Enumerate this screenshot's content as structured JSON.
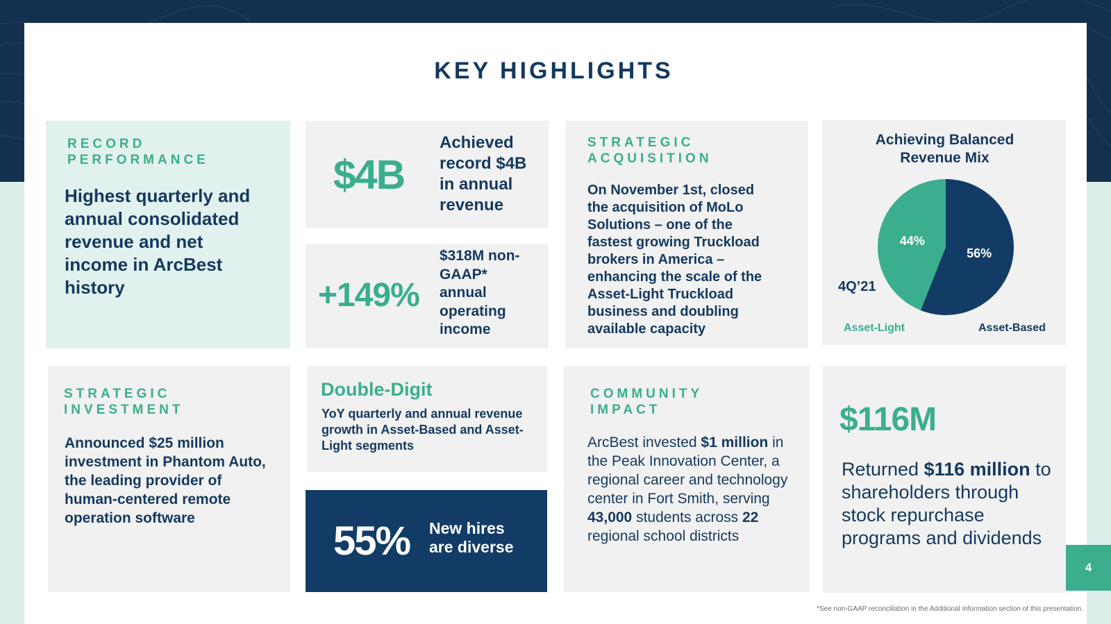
{
  "page": {
    "title": "KEY HIGHLIGHTS",
    "page_number": "4",
    "footnote": "*See non-GAAP reconciliation in the Additional Information section of this presentation."
  },
  "record": {
    "eyebrow": "RECORD\nPERFORMANCE",
    "text": "Highest quarterly and annual consolidated revenue and net income in ArcBest history"
  },
  "revenue": {
    "value": "$4B",
    "text": "Achieved record $4B in annual revenue"
  },
  "operating": {
    "value": "+149%",
    "text": "$318M non-GAAP* annual operating income"
  },
  "acquisition": {
    "eyebrow": "STRATEGIC\nACQUISITION",
    "text": "On November 1st, closed the acquisition of MoLo Solutions – one of the fastest growing Truckload brokers in America – enhancing the scale of the Asset-Light Truckload business and doubling available capacity"
  },
  "revenue_mix": {
    "title": "Achieving Balanced Revenue Mix",
    "period": "4Q’21",
    "colors": {
      "asset_light": "#3aae8e",
      "asset_based": "#123c66"
    }
  },
  "chart_data": {
    "type": "pie",
    "title": "Achieving Balanced Revenue Mix",
    "labels": [
      "Asset-Light",
      "Asset-Based"
    ],
    "values": [
      44,
      56
    ],
    "value_labels": [
      "44%",
      "56%"
    ],
    "annotation": "4Q’21"
  },
  "investment": {
    "eyebrow": "STRATEGIC\nINVESTMENT",
    "text": "Announced $25 million investment in Phantom Auto, the leading provider of human-centered remote operation software"
  },
  "growth": {
    "heading": "Double-Digit",
    "text": "YoY quarterly and annual revenue growth in Asset-Based and Asset-Light segments"
  },
  "hires": {
    "value": "55%",
    "text": "New hires are diverse"
  },
  "community": {
    "eyebrow": "COMMUNITY\nIMPACT",
    "t1": "ArcBest invested ",
    "b1": "$1 million",
    "t2": " in the Peak Innovation Center, a regional career and technology center in Fort Smith, serving ",
    "b2": "43,000",
    "t3": " students across ",
    "b3": "22",
    "t4": " regional school districts"
  },
  "returned": {
    "value": "$116M",
    "t1": "Returned ",
    "b1": "$116 million",
    "t2": " to shareholders through stock repurchase programs and dividends"
  }
}
